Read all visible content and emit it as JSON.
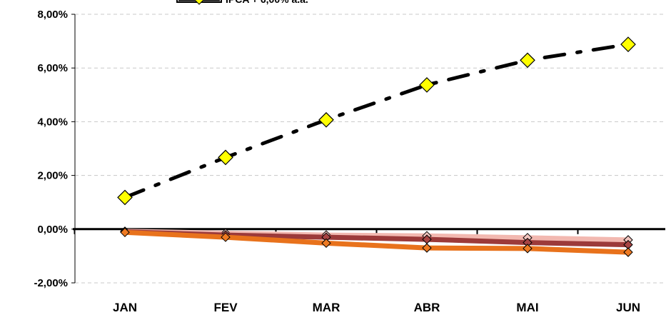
{
  "chart_data": {
    "type": "line",
    "categories": [
      "JAN",
      "FEV",
      "MAR",
      "ABR",
      "MAI",
      "JUN"
    ],
    "ylim": [
      -2,
      8
    ],
    "yticks": [
      -2,
      0,
      2,
      4,
      6,
      8
    ],
    "ytick_labels": [
      "-2,00%",
      "0,00%",
      "2,00%",
      "4,00%",
      "6,00%",
      "8,00%"
    ],
    "grid": true,
    "legend": {
      "placement": "top",
      "visible_entries": [
        "IPCA + 6,00% a.a."
      ]
    },
    "series": [
      {
        "name": "IPCA + 6,00% a.a.",
        "color": "#000000",
        "marker_color": "#FFFF00",
        "style": "dash-dot",
        "marker": "diamond",
        "values": [
          1.18,
          2.67,
          4.07,
          5.37,
          6.29,
          6.88
        ]
      },
      {
        "color": "#F2B8B0",
        "marker_color": "#F2C4BE",
        "style": "solid",
        "marker": "diamond",
        "values": [
          -0.08,
          -0.15,
          -0.22,
          -0.25,
          -0.32,
          -0.4
        ]
      },
      {
        "color": "#9C3A3A",
        "marker_color": "#A84444",
        "style": "solid",
        "marker": "diamond",
        "values": [
          -0.1,
          -0.22,
          -0.3,
          -0.38,
          -0.5,
          -0.58
        ]
      },
      {
        "color": "#E8721C",
        "marker_color": "#EE7A22",
        "style": "solid",
        "marker": "diamond",
        "values": [
          -0.12,
          -0.3,
          -0.52,
          -0.7,
          -0.72,
          -0.86
        ]
      }
    ]
  }
}
